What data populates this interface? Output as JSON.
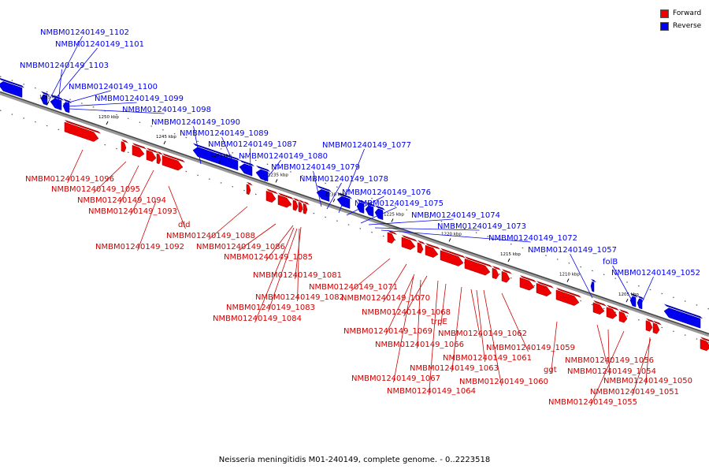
{
  "legend": {
    "forward": {
      "label": "Forward",
      "color": "#ee0000"
    },
    "reverse": {
      "label": "Reverse",
      "color": "#0000ee"
    }
  },
  "caption": "Neisseria meningitidis M01-240149, complete genome. - 0..2223518",
  "ticks": [
    "1255 kbp",
    "1250 kbp",
    "1245 kbp",
    "1240 kbp",
    "1235 kbp",
    "1230 kbp",
    "1225 kbp",
    "1220 kbp",
    "1215 kbp",
    "1210 kbp",
    "1205 kbp"
  ],
  "reverse_labels": [
    "NMBM01240149_1102",
    "NMBM01240149_1101",
    "NMBM01240149_1103",
    "NMBM01240149_1100",
    "NMBM01240149_1099",
    "NMBM01240149_1098",
    "NMBM01240149_1090",
    "NMBM01240149_1089",
    "NMBM01240149_1087",
    "NMBM01240149_1080",
    "NMBM01240149_1079",
    "NMBM01240149_1078",
    "NMBM01240149_1077",
    "NMBM01240149_1076",
    "NMBM01240149_1075",
    "NMBM01240149_1074",
    "NMBM01240149_1073",
    "NMBM01240149_1072",
    "NMBM01240149_1057",
    "folB",
    "NMBM01240149_1052"
  ],
  "forward_labels": [
    "NMBM01240149_1096",
    "NMBM01240149_1095",
    "NMBM01240149_1094",
    "NMBM01240149_1093",
    "dld",
    "NMBM01240149_1092",
    "NMBM01240149_1088",
    "NMBM01240149_1086",
    "NMBM01240149_1085",
    "NMBM01240149_1081",
    "NMBM01240149_1071",
    "NMBM01240149_1082",
    "NMBM01240149_1070",
    "NMBM01240149_1083",
    "NMBM01240149_1084",
    "NMBM01240149_1068",
    "trpE",
    "NMBM01240149_1069",
    "NMBM01240149_1062",
    "NMBM01240149_1066",
    "NMBM01240149_1059",
    "NMBM01240149_1061",
    "NMBM01240149_1063",
    "NMBM01240149_1056",
    "ggt",
    "NMBM01240149_1054",
    "NMBM01240149_1067",
    "NMBM01240149_1060",
    "NMBM01240149_1050",
    "NMBM01240149_1064",
    "NMBM01240149_1051",
    "NMBM01240149_1055"
  ]
}
